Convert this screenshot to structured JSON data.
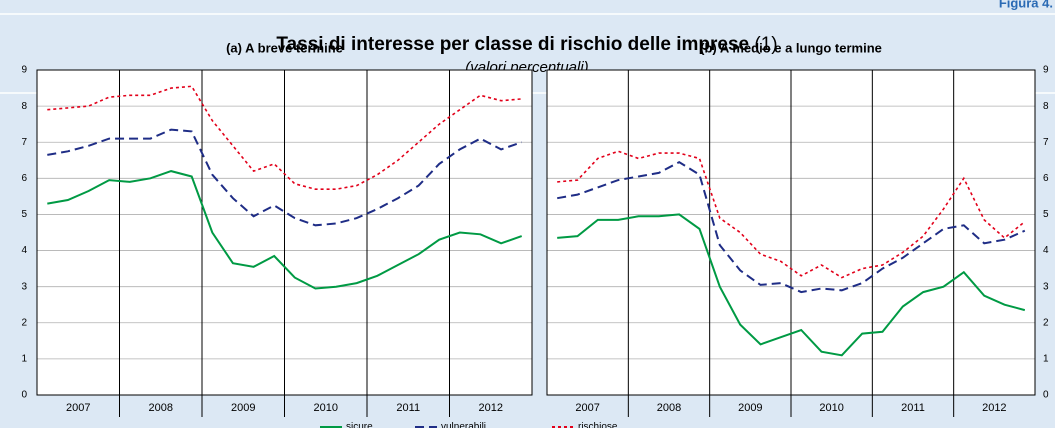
{
  "figure_label": "Figura 4.",
  "title": "Tassi di interesse per classe di rischio delle imprese",
  "title_note": "(1)",
  "subtitle": "(valori percentuali)",
  "chart_data": [
    {
      "type": "line",
      "title": "(a) A breve termine",
      "x": [
        2007.125,
        2007.375,
        2007.625,
        2007.875,
        2008.125,
        2008.375,
        2008.625,
        2008.875,
        2009.125,
        2009.375,
        2009.625,
        2009.875,
        2010.125,
        2010.375,
        2010.625,
        2010.875,
        2011.125,
        2011.375,
        2011.625,
        2011.875,
        2012.125,
        2012.375,
        2012.625,
        2012.875
      ],
      "xlim": [
        2007,
        2013
      ],
      "xgrid": [
        2008,
        2009,
        2010,
        2011,
        2012
      ],
      "xticks": [
        {
          "value": 2007.5,
          "label": "2007"
        },
        {
          "value": 2008.5,
          "label": "2008"
        },
        {
          "value": 2009.5,
          "label": "2009"
        },
        {
          "value": 2010.5,
          "label": "2010"
        },
        {
          "value": 2011.5,
          "label": "2011"
        },
        {
          "value": 2012.5,
          "label": "2012"
        }
      ],
      "ylim": [
        0,
        9
      ],
      "yticks": [
        0,
        1,
        2,
        3,
        4,
        5,
        6,
        7,
        8,
        9
      ],
      "grid": true,
      "y_axis_side": "left",
      "series": [
        {
          "name": "sicure",
          "color": "#009a44",
          "dash": "solid",
          "values": [
            5.3,
            5.4,
            5.65,
            5.95,
            5.9,
            6.0,
            6.2,
            6.05,
            4.5,
            3.65,
            3.55,
            3.85,
            3.25,
            2.95,
            3.0,
            3.1,
            3.3,
            3.6,
            3.9,
            4.3,
            4.5,
            4.45,
            4.2,
            4.4
          ]
        },
        {
          "name": "vulnerabili",
          "color": "#1f2d86",
          "dash": "dashed",
          "values": [
            6.65,
            6.75,
            6.9,
            7.1,
            7.1,
            7.1,
            7.35,
            7.3,
            6.1,
            5.45,
            4.95,
            5.25,
            4.9,
            4.7,
            4.75,
            4.9,
            5.15,
            5.45,
            5.8,
            6.4,
            6.8,
            7.1,
            6.8,
            7.0
          ]
        },
        {
          "name": "rischiose",
          "color": "#e2001a",
          "dash": "dotted",
          "values": [
            7.9,
            7.95,
            8.0,
            8.25,
            8.3,
            8.3,
            8.5,
            8.55,
            7.6,
            6.9,
            6.2,
            6.4,
            5.85,
            5.7,
            5.7,
            5.8,
            6.1,
            6.5,
            7.0,
            7.5,
            7.9,
            8.3,
            8.15,
            8.2
          ]
        }
      ]
    },
    {
      "type": "line",
      "title": "(b) A medio e a lungo termine",
      "x": [
        2007.125,
        2007.375,
        2007.625,
        2007.875,
        2008.125,
        2008.375,
        2008.625,
        2008.875,
        2009.125,
        2009.375,
        2009.625,
        2009.875,
        2010.125,
        2010.375,
        2010.625,
        2010.875,
        2011.125,
        2011.375,
        2011.625,
        2011.875,
        2012.125,
        2012.375,
        2012.625,
        2012.875
      ],
      "xlim": [
        2007,
        2013
      ],
      "xgrid": [
        2008,
        2009,
        2010,
        2011,
        2012
      ],
      "xticks": [
        {
          "value": 2007.5,
          "label": "2007"
        },
        {
          "value": 2008.5,
          "label": "2008"
        },
        {
          "value": 2009.5,
          "label": "2009"
        },
        {
          "value": 2010.5,
          "label": "2010"
        },
        {
          "value": 2011.5,
          "label": "2011"
        },
        {
          "value": 2012.5,
          "label": "2012"
        }
      ],
      "ylim": [
        0,
        9
      ],
      "yticks": [
        0,
        1,
        2,
        3,
        4,
        5,
        6,
        7,
        8,
        9
      ],
      "grid": true,
      "y_axis_side": "right",
      "series": [
        {
          "name": "sicure",
          "color": "#009a44",
          "dash": "solid",
          "values": [
            4.35,
            4.4,
            4.85,
            4.85,
            4.95,
            4.95,
            5.0,
            4.6,
            3.0,
            1.95,
            1.4,
            1.6,
            1.8,
            1.2,
            1.1,
            1.7,
            1.75,
            2.45,
            2.85,
            3.0,
            3.4,
            2.75,
            2.5,
            2.35
          ]
        },
        {
          "name": "vulnerabili",
          "color": "#1f2d86",
          "dash": "dashed",
          "values": [
            5.45,
            5.55,
            5.75,
            5.95,
            6.05,
            6.15,
            6.45,
            6.1,
            4.15,
            3.45,
            3.05,
            3.1,
            2.85,
            2.95,
            2.9,
            3.1,
            3.5,
            3.8,
            4.2,
            4.6,
            4.7,
            4.2,
            4.3,
            4.55
          ]
        },
        {
          "name": "rischiose",
          "color": "#e2001a",
          "dash": "dotted",
          "values": [
            5.9,
            5.95,
            6.55,
            6.75,
            6.55,
            6.7,
            6.7,
            6.55,
            4.9,
            4.5,
            3.9,
            3.7,
            3.3,
            3.6,
            3.25,
            3.5,
            3.6,
            3.95,
            4.4,
            5.15,
            6.0,
            4.85,
            4.35,
            4.8
          ]
        }
      ]
    }
  ]
}
